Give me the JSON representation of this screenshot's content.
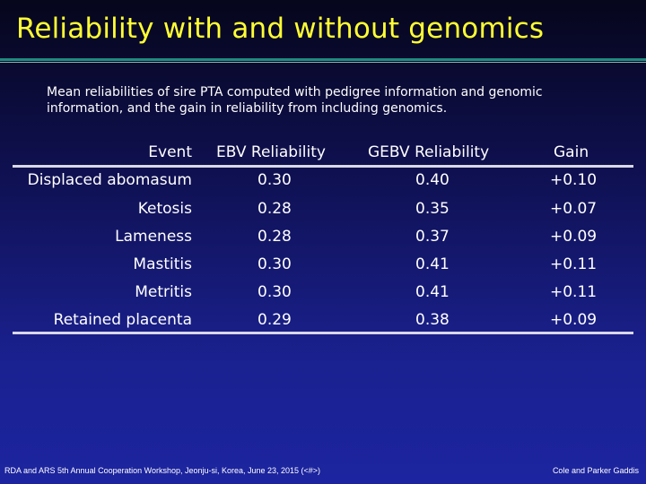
{
  "title": "Reliability with and without genomics",
  "subtitle": "Mean reliabilities of sire PTA computed with pedigree information and genomic information, and the gain in reliability from including genomics.",
  "table": {
    "headers": [
      "Event",
      "EBV Reliability",
      "GEBV Reliability",
      "Gain"
    ],
    "rows": [
      [
        "Displaced abomasum",
        "0.30",
        "0.40",
        "+0.10"
      ],
      [
        "Ketosis",
        "0.28",
        "0.35",
        "+0.07"
      ],
      [
        "Lameness",
        "0.28",
        "0.37",
        "+0.09"
      ],
      [
        "Mastitis",
        "0.30",
        "0.41",
        "+0.11"
      ],
      [
        "Metritis",
        "0.30",
        "0.41",
        "+0.11"
      ],
      [
        "Retained placenta",
        "0.29",
        "0.38",
        "+0.09"
      ]
    ]
  },
  "footer": {
    "left": "RDA and ARS 5th Annual Cooperation Workshop, Jeonju-si, Korea, June 23, 2015 (<#>)",
    "right": "Cole and Parker Gaddis"
  },
  "colors": {
    "title": "#ffff33",
    "rule": "#1f8c7e",
    "background_top": "#06061c",
    "background_bottom": "#1c24a0"
  }
}
